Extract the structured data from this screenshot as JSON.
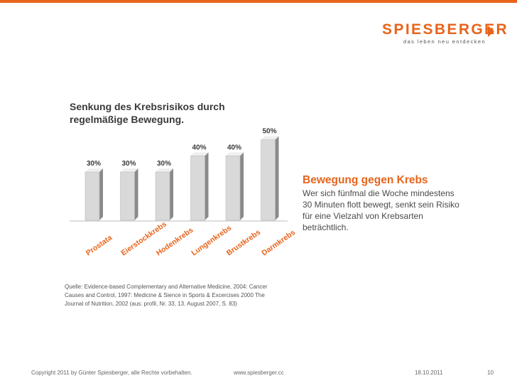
{
  "brand": {
    "name": "SPIESBERGER",
    "tagline": "das leben neu entdecken",
    "accent_color": "#e8641b"
  },
  "slide": {
    "title_lines": [
      "Senkung des Krebsrisikos durch",
      "regelmäßige Bewegung."
    ],
    "side_heading": "Bewegung gegen Krebs",
    "side_body": "Wer sich fünfmal die Woche mindestens 30 Minuten flott bewegt, senkt sein Risiko für eine Vielzahl von Krebsarten beträchtlich.",
    "source": "Quelle: Evidence-based Complementary and Alternative Medicine, 2004: Cancer Causes and Control, 1997: Medicine & Sience in Sports & Excercises 2000 The Journal of Nutrition, 2002 (aus: profil, Nr. 33, 13. August 2007, S. 83)"
  },
  "footer": {
    "copyright": "Copyright 2011 by Günter Spiesberger, alle Rechte vorbehalten.",
    "url": "www.spiesberger.cc",
    "date": "18.10.2011",
    "page": "10"
  },
  "chart_data": {
    "type": "bar",
    "title": "Senkung des Krebsrisikos durch regelmäßige Bewegung.",
    "categories": [
      "Prostata",
      "Eierstockkrebs",
      "Hodenkrebs",
      "Lungenkrebs",
      "Brustkrebs",
      "Darmkrebs"
    ],
    "values": [
      30,
      30,
      30,
      40,
      40,
      50
    ],
    "value_labels": [
      "30%",
      "30%",
      "30%",
      "40%",
      "40%",
      "50%"
    ],
    "unit": "%",
    "ylim": [
      0,
      60
    ],
    "grid": false,
    "legend": "none",
    "bar_color": "#d9d9d9"
  }
}
